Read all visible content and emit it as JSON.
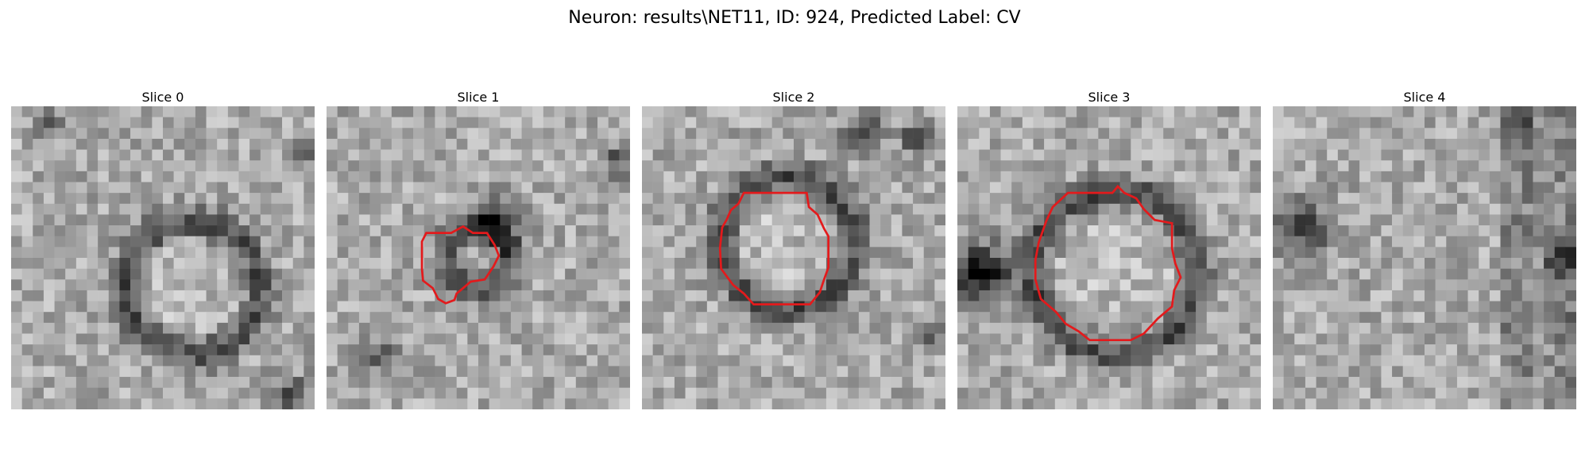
{
  "figure": {
    "title": "Neuron: results\\NET11, ID: 924, Predicted Label: CV"
  },
  "slices": [
    {
      "title": "Slice 0",
      "contour": false,
      "dark_ring": [
        0.6,
        0.6,
        0.22
      ],
      "dark_spots": [
        [
          0.92,
          0.95,
          0.06
        ],
        [
          0.95,
          0.16,
          0.05
        ],
        [
          0.12,
          0.05,
          0.04
        ]
      ]
    },
    {
      "title": "Slice 1",
      "contour": true,
      "dark_ring": [
        0.5,
        0.5,
        0.1
      ],
      "dark_spots": [
        [
          0.17,
          0.82,
          0.05
        ],
        [
          0.55,
          0.38,
          0.08
        ],
        [
          0.96,
          0.18,
          0.05
        ]
      ]
    },
    {
      "title": "Slice 2",
      "contour": true,
      "dark_ring": [
        0.48,
        0.45,
        0.22
      ],
      "dark_spots": [
        [
          0.73,
          0.08,
          0.07
        ],
        [
          0.9,
          0.1,
          0.05
        ],
        [
          0.95,
          0.75,
          0.04
        ]
      ]
    },
    {
      "title": "Slice 3",
      "contour": true,
      "dark_ring": [
        0.52,
        0.55,
        0.27
      ],
      "dark_spots": [
        [
          0.05,
          0.55,
          0.1
        ],
        [
          0.1,
          0.55,
          0.08
        ]
      ]
    },
    {
      "title": "Slice 4",
      "contour": false,
      "dark_ring": [
        0.5,
        0.5,
        0.0
      ],
      "dark_spots": [
        [
          0.1,
          0.4,
          0.1
        ],
        [
          0.95,
          0.5,
          0.06
        ],
        [
          0.82,
          0.05,
          0.05
        ]
      ]
    }
  ],
  "colors": {
    "contour": "#e31a1c",
    "colormap": "gray"
  }
}
